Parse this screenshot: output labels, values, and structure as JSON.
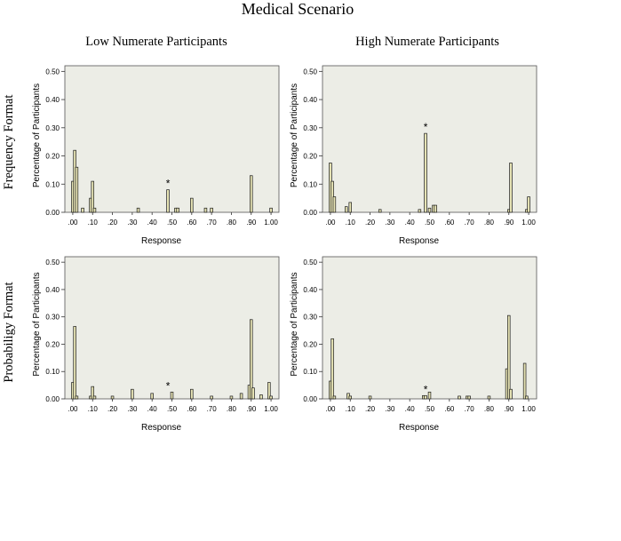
{
  "figure_title": "Medical Scenario",
  "column_headers": [
    "Low Numerate Participants",
    "High Numerate Participants"
  ],
  "row_labels": [
    "Frequency Format",
    "Probabiligy Format"
  ],
  "colors": {
    "plot_bg": "#ecede6",
    "bar_fill": "#e6e3b4",
    "bar_stroke": "#1a1a1a"
  },
  "chart_data": [
    {
      "type": "bar",
      "panel": "frequency-low",
      "xlabel": "Response",
      "ylabel": "Percentage of Participants",
      "ylim": [
        0,
        0.52
      ],
      "xlim": [
        -0.04,
        1.04
      ],
      "yticks": [
        0,
        0.1,
        0.2,
        0.3,
        0.4,
        0.5
      ],
      "ytick_labels": [
        "0.00",
        "0.10",
        "0.20",
        "0.30",
        "0.40",
        "0.50"
      ],
      "xticks": [
        0,
        0.1,
        0.2,
        0.3,
        0.4,
        0.5,
        0.6,
        0.7,
        0.8,
        0.9,
        1.0
      ],
      "xtick_labels": [
        ".00",
        ".10",
        ".20",
        ".30",
        ".40",
        ".50",
        ".60",
        ".70",
        ".80",
        ".90",
        "1.00"
      ],
      "star": {
        "x": 0.48,
        "y": 0.08,
        "label": "*"
      },
      "bars": [
        {
          "x": 0.0,
          "y": 0.11
        },
        {
          "x": 0.01,
          "y": 0.22
        },
        {
          "x": 0.02,
          "y": 0.16
        },
        {
          "x": 0.05,
          "y": 0.015
        },
        {
          "x": 0.09,
          "y": 0.05
        },
        {
          "x": 0.1,
          "y": 0.11
        },
        {
          "x": 0.11,
          "y": 0.015
        },
        {
          "x": 0.33,
          "y": 0.015
        },
        {
          "x": 0.48,
          "y": 0.08
        },
        {
          "x": 0.52,
          "y": 0.015
        },
        {
          "x": 0.53,
          "y": 0.015
        },
        {
          "x": 0.6,
          "y": 0.05
        },
        {
          "x": 0.67,
          "y": 0.015
        },
        {
          "x": 0.7,
          "y": 0.015
        },
        {
          "x": 0.9,
          "y": 0.13
        },
        {
          "x": 1.0,
          "y": 0.015
        }
      ]
    },
    {
      "type": "bar",
      "panel": "frequency-high",
      "xlabel": "Response",
      "ylabel": "Percentage of Participants",
      "ylim": [
        0,
        0.52
      ],
      "xlim": [
        -0.04,
        1.04
      ],
      "yticks": [
        0,
        0.1,
        0.2,
        0.3,
        0.4,
        0.5
      ],
      "ytick_labels": [
        "0.00",
        "0.10",
        "0.20",
        "0.30",
        "0.40",
        "0.50"
      ],
      "xticks": [
        0,
        0.1,
        0.2,
        0.3,
        0.4,
        0.5,
        0.6,
        0.7,
        0.8,
        0.9,
        1.0
      ],
      "xtick_labels": [
        ".00",
        ".10",
        ".20",
        ".30",
        ".40",
        ".50",
        ".60",
        ".70",
        ".80",
        ".90",
        "1.00"
      ],
      "star": {
        "x": 0.48,
        "y": 0.28,
        "label": "*"
      },
      "bars": [
        {
          "x": 0.0,
          "y": 0.175
        },
        {
          "x": 0.01,
          "y": 0.11
        },
        {
          "x": 0.02,
          "y": 0.055
        },
        {
          "x": 0.08,
          "y": 0.02
        },
        {
          "x": 0.1,
          "y": 0.035
        },
        {
          "x": 0.25,
          "y": 0.01
        },
        {
          "x": 0.45,
          "y": 0.01
        },
        {
          "x": 0.48,
          "y": 0.28
        },
        {
          "x": 0.5,
          "y": 0.015
        },
        {
          "x": 0.52,
          "y": 0.025
        },
        {
          "x": 0.53,
          "y": 0.025
        },
        {
          "x": 0.9,
          "y": 0.01
        },
        {
          "x": 0.91,
          "y": 0.175
        },
        {
          "x": 0.99,
          "y": 0.01
        },
        {
          "x": 1.0,
          "y": 0.055
        }
      ]
    },
    {
      "type": "bar",
      "panel": "probability-low",
      "xlabel": "Response",
      "ylabel": "Percentage of Participants",
      "ylim": [
        0,
        0.52
      ],
      "xlim": [
        -0.04,
        1.04
      ],
      "yticks": [
        0,
        0.1,
        0.2,
        0.3,
        0.4,
        0.5
      ],
      "ytick_labels": [
        "0.00",
        "0.10",
        "0.20",
        "0.30",
        "0.40",
        "0.50"
      ],
      "xticks": [
        0,
        0.1,
        0.2,
        0.3,
        0.4,
        0.5,
        0.6,
        0.7,
        0.8,
        0.9,
        1.0
      ],
      "xtick_labels": [
        ".00",
        ".10",
        ".20",
        ".30",
        ".40",
        ".50",
        ".60",
        ".70",
        ".80",
        ".90",
        "1.00"
      ],
      "star": {
        "x": 0.48,
        "y": 0.025,
        "label": "*"
      },
      "bars": [
        {
          "x": 0.0,
          "y": 0.06
        },
        {
          "x": 0.01,
          "y": 0.265
        },
        {
          "x": 0.02,
          "y": 0.01
        },
        {
          "x": 0.09,
          "y": 0.01
        },
        {
          "x": 0.1,
          "y": 0.045
        },
        {
          "x": 0.11,
          "y": 0.01
        },
        {
          "x": 0.2,
          "y": 0.01
        },
        {
          "x": 0.3,
          "y": 0.035
        },
        {
          "x": 0.4,
          "y": 0.02
        },
        {
          "x": 0.5,
          "y": 0.025
        },
        {
          "x": 0.6,
          "y": 0.035
        },
        {
          "x": 0.7,
          "y": 0.01
        },
        {
          "x": 0.8,
          "y": 0.01
        },
        {
          "x": 0.85,
          "y": 0.02
        },
        {
          "x": 0.89,
          "y": 0.05
        },
        {
          "x": 0.9,
          "y": 0.29
        },
        {
          "x": 0.91,
          "y": 0.04
        },
        {
          "x": 0.95,
          "y": 0.015
        },
        {
          "x": 0.99,
          "y": 0.06
        },
        {
          "x": 1.0,
          "y": 0.01
        }
      ]
    },
    {
      "type": "bar",
      "panel": "probability-high",
      "xlabel": "Response",
      "ylabel": "Percentage of Participants",
      "ylim": [
        0,
        0.52
      ],
      "xlim": [
        -0.04,
        1.04
      ],
      "yticks": [
        0,
        0.1,
        0.2,
        0.3,
        0.4,
        0.5
      ],
      "ytick_labels": [
        "0.00",
        "0.10",
        "0.20",
        "0.30",
        "0.40",
        "0.50"
      ],
      "xticks": [
        0,
        0.1,
        0.2,
        0.3,
        0.4,
        0.5,
        0.6,
        0.7,
        0.8,
        0.9,
        1.0
      ],
      "xtick_labels": [
        ".00",
        ".10",
        ".20",
        ".30",
        ".40",
        ".50",
        ".60",
        ".70",
        ".80",
        ".90",
        "1.00"
      ],
      "star": {
        "x": 0.48,
        "y": 0.012,
        "label": "*"
      },
      "bars": [
        {
          "x": 0.0,
          "y": 0.065
        },
        {
          "x": 0.01,
          "y": 0.22
        },
        {
          "x": 0.02,
          "y": 0.01
        },
        {
          "x": 0.09,
          "y": 0.02
        },
        {
          "x": 0.1,
          "y": 0.01
        },
        {
          "x": 0.2,
          "y": 0.01
        },
        {
          "x": 0.47,
          "y": 0.012
        },
        {
          "x": 0.48,
          "y": 0.012
        },
        {
          "x": 0.5,
          "y": 0.025
        },
        {
          "x": 0.65,
          "y": 0.01
        },
        {
          "x": 0.69,
          "y": 0.01
        },
        {
          "x": 0.7,
          "y": 0.01
        },
        {
          "x": 0.8,
          "y": 0.01
        },
        {
          "x": 0.89,
          "y": 0.11
        },
        {
          "x": 0.9,
          "y": 0.305
        },
        {
          "x": 0.91,
          "y": 0.035
        },
        {
          "x": 0.98,
          "y": 0.13
        },
        {
          "x": 0.99,
          "y": 0.01
        }
      ]
    }
  ]
}
